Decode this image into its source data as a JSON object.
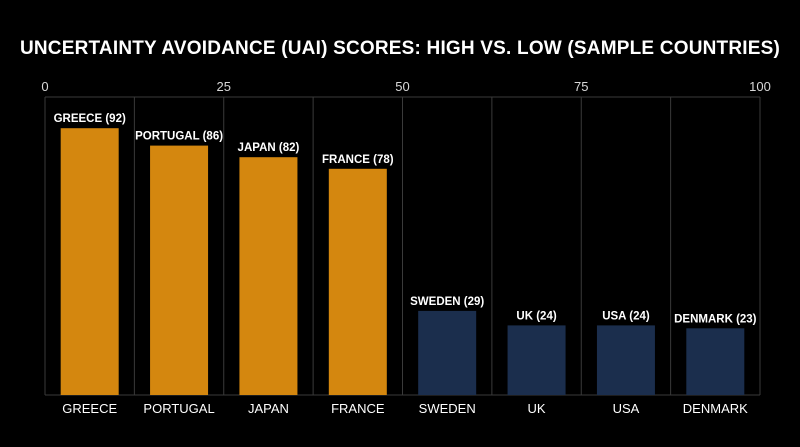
{
  "chart_data": {
    "type": "bar",
    "title": "UNCERTAINTY AVOIDANCE (UAI) SCORES: HIGH VS. LOW (SAMPLE COUNTRIES)",
    "categories": [
      "GREECE",
      "PORTUGAL",
      "JAPAN",
      "FRANCE",
      "SWEDEN",
      "UK",
      "USA",
      "DENMARK"
    ],
    "values": [
      92,
      86,
      82,
      78,
      29,
      24,
      24,
      23
    ],
    "data_labels": [
      "GREECE (92)",
      "PORTUGAL (86)",
      "JAPAN (82)",
      "FRANCE (78)",
      "SWEDEN (29)",
      "UK (24)",
      "USA (24)",
      "DENMARK (23)"
    ],
    "axis_ticks": [
      0,
      25,
      50,
      75,
      100
    ],
    "axis_tick_labels": [
      "0",
      "25",
      "50",
      "75",
      "100"
    ],
    "axis_position": "top",
    "ylim": [
      0,
      100
    ],
    "xlabel": "",
    "ylabel": "",
    "grid": true,
    "colors": {
      "high": "#D4870F",
      "low": "#1B2E4D",
      "grid": "#3a3a3a",
      "background": "#000000"
    },
    "bar_groups": [
      "high",
      "high",
      "high",
      "high",
      "low",
      "low",
      "low",
      "low"
    ]
  }
}
